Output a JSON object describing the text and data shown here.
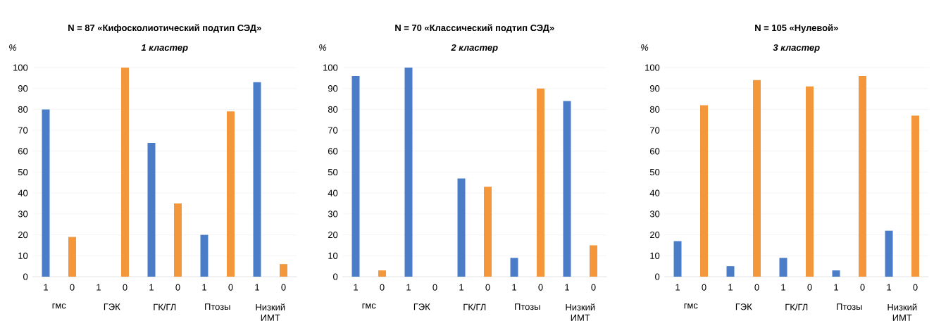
{
  "chart_data": [
    {
      "type": "bar",
      "title": "N = 87 «Кифосколиотический подтип СЭД»",
      "subtitle": "1 кластер",
      "ylabel": "%",
      "categories": [
        "1",
        "0",
        "1",
        "0",
        "1",
        "0",
        "1",
        "0",
        "1",
        "0"
      ],
      "values": [
        80,
        19,
        0,
        100,
        64,
        35,
        20,
        79,
        93,
        6
      ],
      "colors": [
        "#4a7cc7",
        "#f4963a",
        "#4a7cc7",
        "#f4963a",
        "#4a7cc7",
        "#f4963a",
        "#4a7cc7",
        "#f4963a",
        "#4a7cc7",
        "#f4963a"
      ],
      "ylim": [
        0,
        100
      ],
      "yticks": [
        0,
        10,
        20,
        30,
        40,
        50,
        60,
        70,
        80,
        90,
        100
      ],
      "grid": "y",
      "annotations": [
        "гмс",
        "ГЭК",
        "ГК/ГЛ",
        "Птозы",
        "Низкий ИМТ"
      ]
    },
    {
      "type": "bar",
      "title": "N = 70 «Классический подтип СЭД»",
      "subtitle": "2 кластер",
      "ylabel": "%",
      "categories": [
        "1",
        "0",
        "1",
        "0",
        "1",
        "0",
        "1",
        "0",
        "1",
        "0"
      ],
      "values": [
        96,
        3,
        100,
        0,
        47,
        43,
        9,
        90,
        84,
        15
      ],
      "colors": [
        "#4a7cc7",
        "#f4963a",
        "#4a7cc7",
        "#f4963a",
        "#4a7cc7",
        "#f4963a",
        "#4a7cc7",
        "#f4963a",
        "#4a7cc7",
        "#f4963a"
      ],
      "ylim": [
        0,
        100
      ],
      "yticks": [
        0,
        10,
        20,
        30,
        40,
        50,
        60,
        70,
        80,
        90,
        100
      ],
      "grid": "y",
      "annotations": [
        "гмс",
        "ГЭК",
        "ГК/ГЛ",
        "Птозы",
        "Низкий ИМТ"
      ]
    },
    {
      "type": "bar",
      "title": "N = 105 «Нулевой»",
      "subtitle": "3 кластер",
      "ylabel": "%",
      "categories": [
        "1",
        "0",
        "1",
        "0",
        "1",
        "0",
        "1",
        "0",
        "1",
        "0"
      ],
      "values": [
        17,
        82,
        5,
        94,
        9,
        91,
        3,
        96,
        22,
        77
      ],
      "colors": [
        "#4a7cc7",
        "#f4963a",
        "#4a7cc7",
        "#f4963a",
        "#4a7cc7",
        "#f4963a",
        "#4a7cc7",
        "#f4963a",
        "#4a7cc7",
        "#f4963a"
      ],
      "ylim": [
        0,
        100
      ],
      "yticks": [
        0,
        10,
        20,
        30,
        40,
        50,
        60,
        70,
        80,
        90,
        100
      ],
      "grid": "y",
      "annotations": [
        "гмс",
        "ГЭК",
        "ГК/ГЛ",
        "Птозы",
        "Низкий ИМТ"
      ]
    }
  ]
}
